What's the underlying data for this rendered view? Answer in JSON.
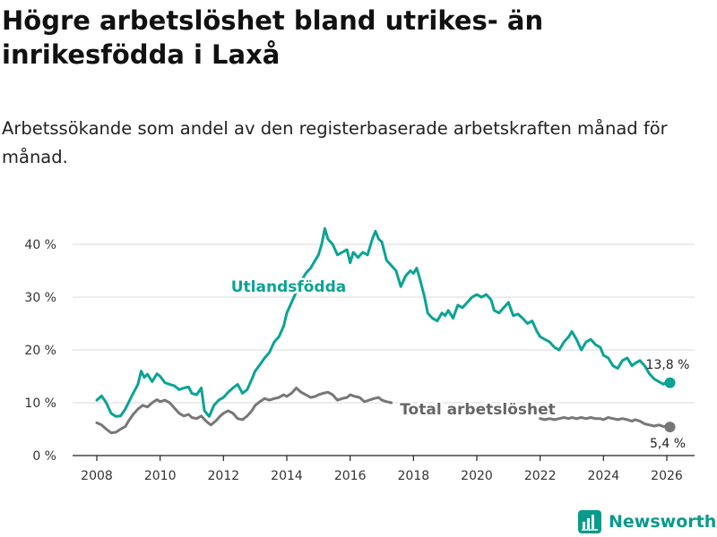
{
  "header": {
    "title": "Högre arbetslöshet bland utrikes- än inrikesfödda i Laxå",
    "subtitle": "Arbetssökande som andel av den registerbaserade arbetskraften månad för månad."
  },
  "brand": {
    "name": "Newsworthy"
  },
  "chart_data": {
    "type": "line",
    "title": "Högre arbetslöshet bland utrikes- än inrikesfödda i Laxå",
    "subtitle": "Arbetssökande som andel av den registerbaserade arbetskraften månad för månad.",
    "xlabel": "",
    "ylabel": "",
    "xlim": [
      2007.7,
      2026.9
    ],
    "ylim": [
      0,
      43
    ],
    "yticks": [
      0,
      10,
      20,
      30,
      40
    ],
    "ytick_labels": [
      "0 %",
      "10 %",
      "20 %",
      "30 %",
      "40 %"
    ],
    "xticks": [
      2008,
      2010,
      2012,
      2014,
      2016,
      2018,
      2020,
      2022,
      2024,
      2026
    ],
    "xtick_labels": [
      "2008",
      "2010",
      "2012",
      "2014",
      "2016",
      "2018",
      "2020",
      "2022",
      "2024",
      "2026"
    ],
    "grid": "horizontal",
    "series": [
      {
        "name": "Utlandsfödda",
        "color": "#0aa395",
        "end_label": "13,8 %",
        "points": [
          [
            2008.0,
            10.5
          ],
          [
            2008.15,
            11.3
          ],
          [
            2008.3,
            10.0
          ],
          [
            2008.45,
            8.0
          ],
          [
            2008.6,
            7.4
          ],
          [
            2008.75,
            7.5
          ],
          [
            2008.9,
            8.8
          ],
          [
            2009.0,
            10.0
          ],
          [
            2009.15,
            11.8
          ],
          [
            2009.3,
            13.5
          ],
          [
            2009.4,
            16.0
          ],
          [
            2009.5,
            14.8
          ],
          [
            2009.6,
            15.4
          ],
          [
            2009.75,
            14.0
          ],
          [
            2009.9,
            15.5
          ],
          [
            2010.0,
            15.0
          ],
          [
            2010.15,
            13.8
          ],
          [
            2010.3,
            13.5
          ],
          [
            2010.45,
            13.2
          ],
          [
            2010.6,
            12.5
          ],
          [
            2010.75,
            12.8
          ],
          [
            2010.9,
            13.0
          ],
          [
            2011.0,
            11.8
          ],
          [
            2011.15,
            11.5
          ],
          [
            2011.3,
            12.8
          ],
          [
            2011.4,
            8.5
          ],
          [
            2011.55,
            7.4
          ],
          [
            2011.7,
            9.5
          ],
          [
            2011.85,
            10.5
          ],
          [
            2012.0,
            11.0
          ],
          [
            2012.15,
            12.0
          ],
          [
            2012.3,
            12.8
          ],
          [
            2012.45,
            13.5
          ],
          [
            2012.6,
            11.8
          ],
          [
            2012.75,
            12.5
          ],
          [
            2012.9,
            14.5
          ],
          [
            2013.0,
            16.0
          ],
          [
            2013.15,
            17.2
          ],
          [
            2013.3,
            18.5
          ],
          [
            2013.45,
            19.5
          ],
          [
            2013.6,
            21.5
          ],
          [
            2013.75,
            22.5
          ],
          [
            2013.9,
            24.5
          ],
          [
            2014.0,
            27.0
          ],
          [
            2014.15,
            29.0
          ],
          [
            2014.3,
            31.0
          ],
          [
            2014.45,
            33.0
          ],
          [
            2014.6,
            34.5
          ],
          [
            2014.75,
            35.5
          ],
          [
            2014.9,
            37.0
          ],
          [
            2015.0,
            38.0
          ],
          [
            2015.1,
            40.0
          ],
          [
            2015.2,
            43.0
          ],
          [
            2015.3,
            41.0
          ],
          [
            2015.45,
            40.0
          ],
          [
            2015.6,
            38.0
          ],
          [
            2015.75,
            38.5
          ],
          [
            2015.9,
            39.0
          ],
          [
            2016.0,
            36.5
          ],
          [
            2016.1,
            38.5
          ],
          [
            2016.25,
            37.5
          ],
          [
            2016.4,
            38.5
          ],
          [
            2016.55,
            38.0
          ],
          [
            2016.7,
            41.0
          ],
          [
            2016.8,
            42.5
          ],
          [
            2016.9,
            41.0
          ],
          [
            2017.0,
            40.5
          ],
          [
            2017.15,
            37.0
          ],
          [
            2017.3,
            36.0
          ],
          [
            2017.45,
            35.0
          ],
          [
            2017.6,
            32.0
          ],
          [
            2017.75,
            34.0
          ],
          [
            2017.9,
            35.0
          ],
          [
            2018.0,
            34.5
          ],
          [
            2018.1,
            35.5
          ],
          [
            2018.2,
            33.5
          ],
          [
            2018.35,
            30.0
          ],
          [
            2018.45,
            27.0
          ],
          [
            2018.6,
            26.0
          ],
          [
            2018.75,
            25.5
          ],
          [
            2018.9,
            27.0
          ],
          [
            2019.0,
            26.5
          ],
          [
            2019.1,
            27.5
          ],
          [
            2019.25,
            26.0
          ],
          [
            2019.4,
            28.5
          ],
          [
            2019.55,
            28.0
          ],
          [
            2019.7,
            29.0
          ],
          [
            2019.85,
            30.0
          ],
          [
            2020.0,
            30.5
          ],
          [
            2020.15,
            30.0
          ],
          [
            2020.3,
            30.5
          ],
          [
            2020.45,
            29.5
          ],
          [
            2020.55,
            27.5
          ],
          [
            2020.7,
            27.0
          ],
          [
            2020.85,
            28.0
          ],
          [
            2021.0,
            29.0
          ],
          [
            2021.15,
            26.5
          ],
          [
            2021.3,
            26.8
          ],
          [
            2021.45,
            26.0
          ],
          [
            2021.6,
            25.0
          ],
          [
            2021.75,
            25.5
          ],
          [
            2021.9,
            23.5
          ],
          [
            2022.0,
            22.5
          ],
          [
            2022.15,
            22.0
          ],
          [
            2022.3,
            21.5
          ],
          [
            2022.45,
            20.5
          ],
          [
            2022.6,
            20.0
          ],
          [
            2022.75,
            21.5
          ],
          [
            2022.9,
            22.5
          ],
          [
            2023.0,
            23.5
          ],
          [
            2023.15,
            22.0
          ],
          [
            2023.3,
            20.0
          ],
          [
            2023.45,
            21.5
          ],
          [
            2023.6,
            22.0
          ],
          [
            2023.75,
            21.0
          ],
          [
            2023.9,
            20.5
          ],
          [
            2024.0,
            19.0
          ],
          [
            2024.15,
            18.5
          ],
          [
            2024.3,
            17.0
          ],
          [
            2024.45,
            16.5
          ],
          [
            2024.6,
            18.0
          ],
          [
            2024.75,
            18.5
          ],
          [
            2024.9,
            17.0
          ],
          [
            2025.0,
            17.5
          ],
          [
            2025.15,
            18.0
          ],
          [
            2025.3,
            17.0
          ],
          [
            2025.45,
            15.5
          ],
          [
            2025.6,
            14.5
          ],
          [
            2025.75,
            14.0
          ],
          [
            2025.9,
            13.5
          ],
          [
            2026.0,
            14.0
          ],
          [
            2026.1,
            13.8
          ]
        ]
      },
      {
        "name": "Total arbetslöshet",
        "color": "#777777",
        "end_label": "5,4 %",
        "points": [
          [
            2008.0,
            6.2
          ],
          [
            2008.15,
            5.8
          ],
          [
            2008.3,
            5.0
          ],
          [
            2008.45,
            4.3
          ],
          [
            2008.6,
            4.4
          ],
          [
            2008.75,
            5.0
          ],
          [
            2008.9,
            5.5
          ],
          [
            2009.0,
            6.5
          ],
          [
            2009.15,
            7.8
          ],
          [
            2009.3,
            8.8
          ],
          [
            2009.45,
            9.5
          ],
          [
            2009.6,
            9.2
          ],
          [
            2009.75,
            10.0
          ],
          [
            2009.9,
            10.6
          ],
          [
            2010.0,
            10.2
          ],
          [
            2010.15,
            10.5
          ],
          [
            2010.3,
            10.0
          ],
          [
            2010.45,
            9.0
          ],
          [
            2010.6,
            8.0
          ],
          [
            2010.75,
            7.5
          ],
          [
            2010.9,
            7.8
          ],
          [
            2011.0,
            7.2
          ],
          [
            2011.15,
            7.0
          ],
          [
            2011.3,
            7.5
          ],
          [
            2011.45,
            6.5
          ],
          [
            2011.6,
            5.8
          ],
          [
            2011.75,
            6.5
          ],
          [
            2011.9,
            7.5
          ],
          [
            2012.0,
            8.0
          ],
          [
            2012.15,
            8.5
          ],
          [
            2012.3,
            8.0
          ],
          [
            2012.45,
            7.0
          ],
          [
            2012.6,
            6.8
          ],
          [
            2012.75,
            7.5
          ],
          [
            2012.9,
            8.5
          ],
          [
            2013.0,
            9.5
          ],
          [
            2013.15,
            10.2
          ],
          [
            2013.3,
            10.8
          ],
          [
            2013.45,
            10.5
          ],
          [
            2013.6,
            10.8
          ],
          [
            2013.75,
            11.0
          ],
          [
            2013.9,
            11.5
          ],
          [
            2014.0,
            11.2
          ],
          [
            2014.15,
            11.8
          ],
          [
            2014.3,
            12.8
          ],
          [
            2014.45,
            12.0
          ],
          [
            2014.6,
            11.5
          ],
          [
            2014.75,
            11.0
          ],
          [
            2014.9,
            11.2
          ],
          [
            2015.0,
            11.5
          ],
          [
            2015.15,
            11.8
          ],
          [
            2015.3,
            12.0
          ],
          [
            2015.45,
            11.5
          ],
          [
            2015.6,
            10.5
          ],
          [
            2015.75,
            10.8
          ],
          [
            2015.9,
            11.0
          ],
          [
            2016.0,
            11.5
          ],
          [
            2016.15,
            11.2
          ],
          [
            2016.3,
            11.0
          ],
          [
            2016.45,
            10.2
          ],
          [
            2016.6,
            10.5
          ],
          [
            2016.75,
            10.8
          ],
          [
            2016.9,
            11.0
          ],
          [
            2017.0,
            10.5
          ],
          [
            2017.15,
            10.2
          ],
          [
            2017.3,
            10.0
          ]
        ],
        "points_tail": [
          [
            2022.0,
            7.0
          ],
          [
            2022.15,
            6.8
          ],
          [
            2022.3,
            7.0
          ],
          [
            2022.45,
            6.8
          ],
          [
            2022.6,
            7.0
          ],
          [
            2022.75,
            7.2
          ],
          [
            2022.9,
            7.0
          ],
          [
            2023.0,
            7.2
          ],
          [
            2023.15,
            7.0
          ],
          [
            2023.3,
            7.2
          ],
          [
            2023.45,
            7.0
          ],
          [
            2023.6,
            7.2
          ],
          [
            2023.75,
            7.0
          ],
          [
            2023.9,
            7.0
          ],
          [
            2024.0,
            6.8
          ],
          [
            2024.15,
            7.2
          ],
          [
            2024.3,
            7.0
          ],
          [
            2024.45,
            6.8
          ],
          [
            2024.6,
            7.0
          ],
          [
            2024.75,
            6.8
          ],
          [
            2024.9,
            6.5
          ],
          [
            2025.0,
            6.8
          ],
          [
            2025.15,
            6.5
          ],
          [
            2025.3,
            6.0
          ],
          [
            2025.45,
            5.8
          ],
          [
            2025.6,
            5.6
          ],
          [
            2025.75,
            5.8
          ],
          [
            2025.9,
            5.5
          ],
          [
            2026.0,
            5.6
          ],
          [
            2026.1,
            5.4
          ]
        ]
      }
    ],
    "annotations": [
      {
        "text": "Utlandsfödda",
        "series": "Utlandsfödda",
        "at": [
          2014.3,
          31.0
        ]
      },
      {
        "text": "Total arbetslöshet",
        "series": "Total arbetslöshet",
        "at": [
          2019.8,
          8.5
        ]
      }
    ]
  }
}
